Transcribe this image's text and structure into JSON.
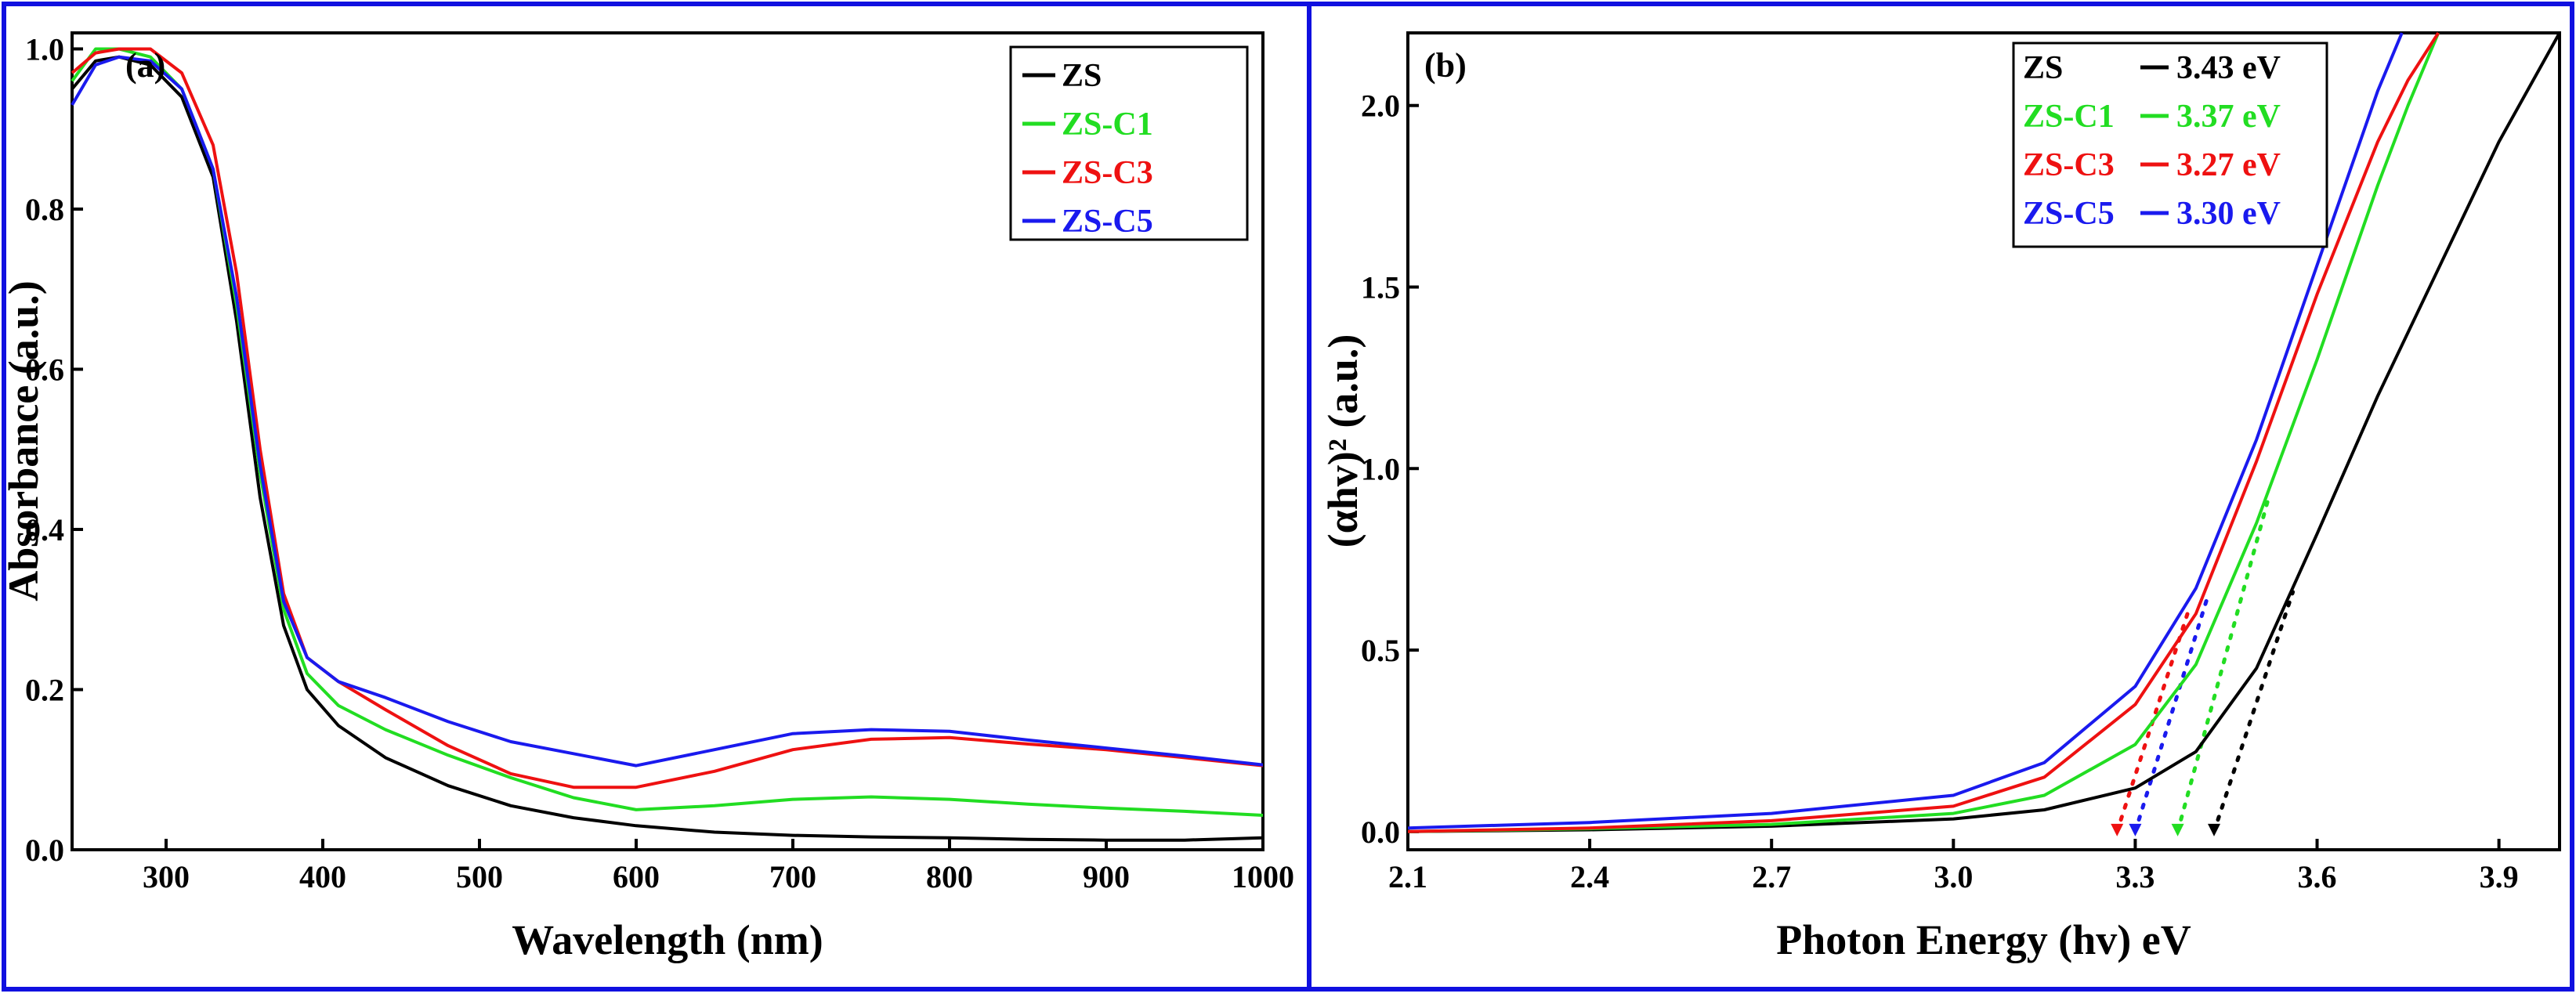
{
  "chart_data": [
    {
      "panel": "(a)",
      "type": "line",
      "title": "",
      "xlabel": "Wavelength (nm)",
      "ylabel": "Absorbance (a.u.)",
      "xlim": [
        240,
        1000
      ],
      "ylim": [
        0,
        1.02
      ],
      "xticks": [
        300,
        400,
        500,
        600,
        700,
        800,
        900,
        1000
      ],
      "yticks": [
        0.0,
        0.2,
        0.4,
        0.6,
        0.8,
        1.0
      ],
      "legend": "top-right",
      "series": [
        {
          "name": "ZS",
          "color": "#000000",
          "x": [
            240,
            255,
            270,
            290,
            310,
            330,
            345,
            360,
            375,
            390,
            410,
            440,
            480,
            520,
            560,
            600,
            650,
            700,
            750,
            800,
            850,
            900,
            950,
            1000
          ],
          "y": [
            0.95,
            0.985,
            0.99,
            0.98,
            0.94,
            0.84,
            0.66,
            0.44,
            0.28,
            0.2,
            0.155,
            0.115,
            0.08,
            0.055,
            0.04,
            0.03,
            0.022,
            0.018,
            0.016,
            0.015,
            0.013,
            0.012,
            0.012,
            0.015
          ]
        },
        {
          "name": "ZS-C1",
          "color": "#22dd22",
          "x": [
            240,
            255,
            270,
            290,
            310,
            330,
            345,
            360,
            375,
            390,
            410,
            440,
            480,
            520,
            560,
            600,
            650,
            700,
            750,
            800,
            850,
            900,
            950,
            1000
          ],
          "y": [
            0.96,
            1.0,
            1.0,
            0.99,
            0.95,
            0.85,
            0.68,
            0.47,
            0.3,
            0.22,
            0.18,
            0.15,
            0.118,
            0.09,
            0.065,
            0.05,
            0.055,
            0.063,
            0.066,
            0.063,
            0.057,
            0.052,
            0.048,
            0.043
          ]
        },
        {
          "name": "ZS-C3",
          "color": "#ee1111",
          "x": [
            240,
            255,
            270,
            290,
            310,
            330,
            345,
            360,
            375,
            390,
            410,
            440,
            480,
            520,
            560,
            600,
            650,
            700,
            750,
            800,
            850,
            900,
            950,
            1000
          ],
          "y": [
            0.97,
            0.995,
            1.0,
            1.0,
            0.97,
            0.88,
            0.72,
            0.5,
            0.32,
            0.24,
            0.21,
            0.175,
            0.13,
            0.095,
            0.078,
            0.078,
            0.098,
            0.125,
            0.138,
            0.14,
            0.132,
            0.125,
            0.115,
            0.105
          ]
        },
        {
          "name": "ZS-C5",
          "color": "#1a1aee",
          "x": [
            240,
            255,
            270,
            290,
            310,
            330,
            345,
            360,
            375,
            390,
            410,
            440,
            480,
            520,
            560,
            600,
            650,
            700,
            750,
            800,
            850,
            900,
            950,
            1000
          ],
          "y": [
            0.93,
            0.98,
            0.99,
            0.985,
            0.95,
            0.85,
            0.69,
            0.48,
            0.31,
            0.24,
            0.21,
            0.19,
            0.16,
            0.135,
            0.12,
            0.105,
            0.125,
            0.145,
            0.15,
            0.148,
            0.137,
            0.127,
            0.117,
            0.106
          ]
        }
      ]
    },
    {
      "panel": "(b)",
      "type": "line",
      "title": "",
      "xlabel": "Photon Energy (hv) eV",
      "ylabel": "(αhv)² (a.u.)",
      "xlim": [
        2.1,
        4.0
      ],
      "ylim": [
        -0.05,
        2.2
      ],
      "xticks": [
        2.1,
        2.4,
        2.7,
        3.0,
        3.3,
        3.6,
        3.9
      ],
      "yticks": [
        0.0,
        0.5,
        1.0,
        1.5,
        2.0
      ],
      "legend": "top-right",
      "series": [
        {
          "name": "ZS",
          "label": "ZS",
          "band_gap": "3.43 eV",
          "color": "#000000",
          "x": [
            2.1,
            2.4,
            2.7,
            3.0,
            3.15,
            3.3,
            3.4,
            3.5,
            3.6,
            3.7,
            3.8,
            3.9,
            4.0
          ],
          "y": [
            0.0,
            0.005,
            0.015,
            0.035,
            0.06,
            0.12,
            0.22,
            0.45,
            0.82,
            1.2,
            1.55,
            1.9,
            2.2
          ],
          "fit_x": [
            3.43,
            3.56
          ],
          "fit_y": [
            0.0,
            0.66
          ]
        },
        {
          "name": "ZS-C1",
          "label": "ZS-C1",
          "band_gap": "3.37 eV",
          "color": "#22dd22",
          "x": [
            2.1,
            2.4,
            2.7,
            3.0,
            3.15,
            3.3,
            3.4,
            3.5,
            3.6,
            3.7,
            3.75,
            3.8
          ],
          "y": [
            0.0,
            0.008,
            0.02,
            0.05,
            0.1,
            0.24,
            0.46,
            0.85,
            1.3,
            1.78,
            2.0,
            2.2
          ],
          "fit_x": [
            3.37,
            3.52
          ],
          "fit_y": [
            0.0,
            0.92
          ]
        },
        {
          "name": "ZS-C3",
          "label": "ZS-C3",
          "band_gap": "3.27 eV",
          "color": "#ee1111",
          "x": [
            2.1,
            2.4,
            2.7,
            3.0,
            3.15,
            3.3,
            3.4,
            3.5,
            3.6,
            3.7,
            3.75,
            3.8
          ],
          "y": [
            0.0,
            0.01,
            0.03,
            0.07,
            0.15,
            0.35,
            0.6,
            1.02,
            1.48,
            1.9,
            2.07,
            2.2
          ],
          "fit_x": [
            3.27,
            3.39
          ],
          "fit_y": [
            0.0,
            0.62
          ]
        },
        {
          "name": "ZS-C5",
          "label": "ZS-C5",
          "band_gap": "3.30 eV",
          "color": "#1a1aee",
          "x": [
            2.1,
            2.4,
            2.7,
            3.0,
            3.15,
            3.3,
            3.4,
            3.5,
            3.6,
            3.7,
            3.74
          ],
          "y": [
            0.01,
            0.025,
            0.05,
            0.1,
            0.19,
            0.4,
            0.67,
            1.08,
            1.56,
            2.04,
            2.2
          ],
          "fit_x": [
            3.3,
            3.42
          ],
          "fit_y": [
            0.0,
            0.65
          ]
        }
      ]
    }
  ]
}
